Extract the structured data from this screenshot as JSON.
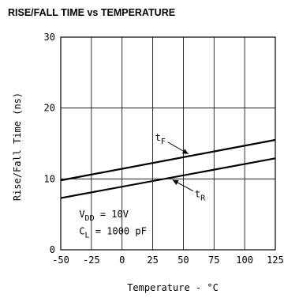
{
  "chart_data": {
    "type": "line",
    "title": "RISE/FALL TIME vs TEMPERATURE",
    "xlabel": "Temperature - °C",
    "ylabel": "Rise/Fall Time (ns)",
    "xlim": [
      -50,
      125
    ],
    "ylim": [
      0,
      30
    ],
    "x_ticks": [
      "-50",
      "-25",
      "0",
      "25",
      "50",
      "75",
      "100",
      "125"
    ],
    "y_ticks": [
      "0",
      "10",
      "20",
      "30"
    ],
    "grid": true,
    "series": [
      {
        "name": "tF",
        "x": [
          -50,
          125
        ],
        "y": [
          9.8,
          15.5
        ]
      },
      {
        "name": "tR",
        "x": [
          -50,
          125
        ],
        "y": [
          7.3,
          12.9
        ]
      }
    ],
    "curve_labels": {
      "tF": {
        "main": "t",
        "sub": "F"
      },
      "tR": {
        "main": "t",
        "sub": "R"
      }
    },
    "annotations": {
      "vdd": {
        "main": "V",
        "sub": "DD",
        "rest": " = 10V"
      },
      "cl": {
        "main": "C",
        "sub": "L",
        "rest": " = 1000 pF"
      }
    },
    "colors": {
      "line": "#000000",
      "grid": "#000000"
    }
  }
}
